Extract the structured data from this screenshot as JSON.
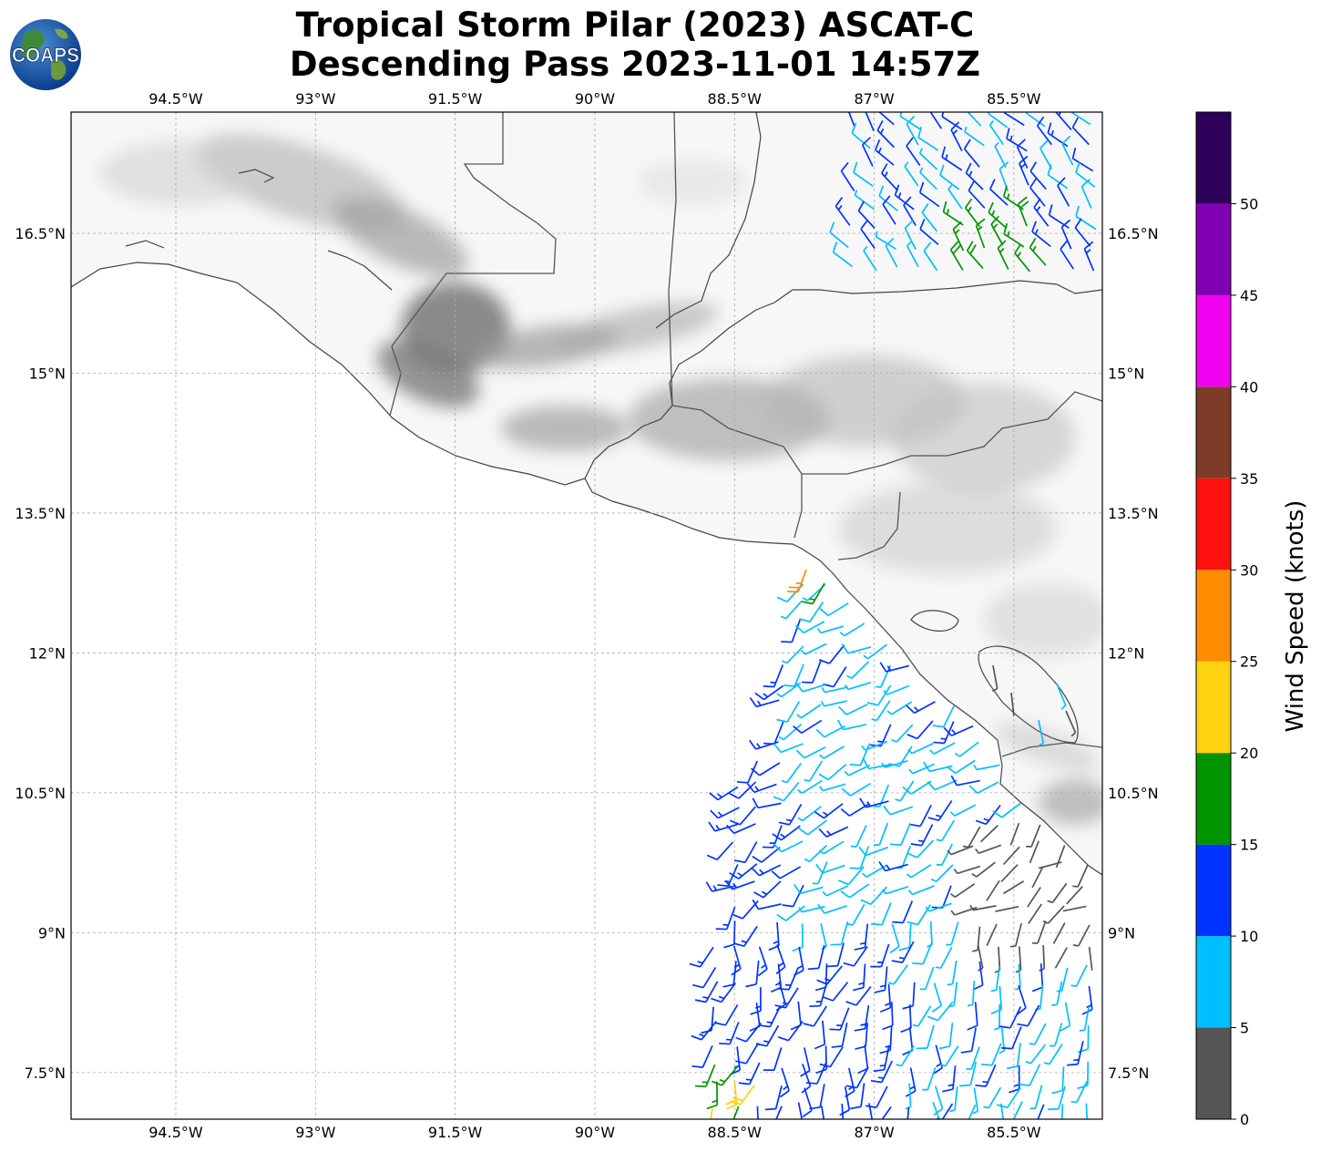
{
  "title": {
    "line1": "Tropical Storm Pilar (2023) ASCAT-C",
    "line2": "Descending Pass 2023-11-01 14:57Z"
  },
  "logo": {
    "text": "COAPS"
  },
  "map": {
    "projection": "PlateCarree",
    "extent": {
      "lon_min": -95.625,
      "lon_max": -84.55,
      "lat_min": 7.0,
      "lat_max": 17.8
    },
    "lon_ticks": [
      {
        "value": -94.5,
        "label": "94.5°W"
      },
      {
        "value": -93,
        "label": "93°W"
      },
      {
        "value": -91.5,
        "label": "91.5°W"
      },
      {
        "value": -90,
        "label": "90°W"
      },
      {
        "value": -88.5,
        "label": "88.5°W"
      },
      {
        "value": -87,
        "label": "87°W"
      },
      {
        "value": -85.5,
        "label": "85.5°W"
      }
    ],
    "lat_ticks": [
      {
        "value": 16.5,
        "label": "16.5°N"
      },
      {
        "value": 15,
        "label": "15°N"
      },
      {
        "value": 13.5,
        "label": "13.5°N"
      },
      {
        "value": 12,
        "label": "12°N"
      },
      {
        "value": 10.5,
        "label": "10.5°N"
      },
      {
        "value": 9,
        "label": "9°N"
      },
      {
        "value": 7.5,
        "label": "7.5°N"
      }
    ],
    "gridlines": true,
    "background": "terrain-grayscale"
  },
  "colorbar": {
    "label": "Wind Speed (knots)",
    "tick_labels": [
      "0",
      "5",
      "10",
      "15",
      "20",
      "25",
      "30",
      "35",
      "40",
      "45",
      "50"
    ],
    "bins": [
      {
        "min": 0,
        "max": 5,
        "color": "#555555"
      },
      {
        "min": 5,
        "max": 10,
        "color": "#00bfff"
      },
      {
        "min": 10,
        "max": 15,
        "color": "#0033ff"
      },
      {
        "min": 15,
        "max": 20,
        "color": "#009400"
      },
      {
        "min": 20,
        "max": 25,
        "color": "#ffd20f"
      },
      {
        "min": 25,
        "max": 30,
        "color": "#ff8c00"
      },
      {
        "min": 30,
        "max": 35,
        "color": "#ff1010"
      },
      {
        "min": 35,
        "max": 40,
        "color": "#7d3c28"
      },
      {
        "min": 40,
        "max": 45,
        "color": "#f000f0"
      },
      {
        "min": 45,
        "max": 50,
        "color": "#8200b4"
      },
      {
        "min": 50,
        "max": 55,
        "color": "#2d005a"
      }
    ]
  },
  "layers": [
    "coastlines",
    "country-borders",
    "ascat-wind-barbs"
  ]
}
